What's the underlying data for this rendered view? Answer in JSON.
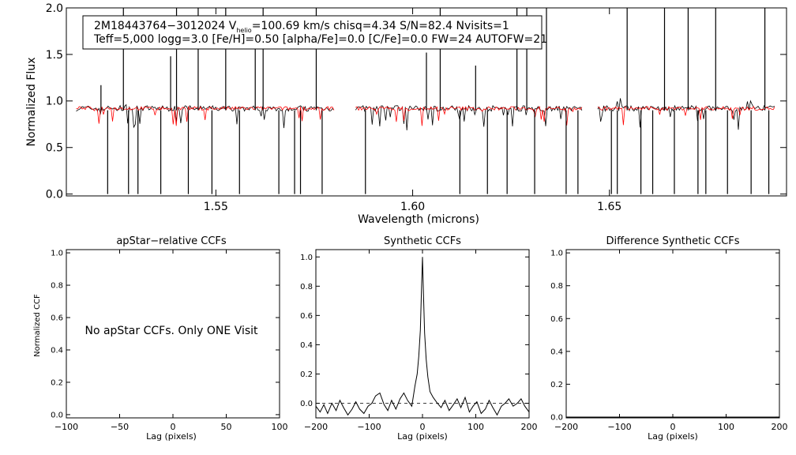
{
  "chart_data": [
    {
      "type": "line",
      "title": "",
      "xlabel": "Wavelength (microns)",
      "ylabel": "Normalized Flux",
      "xlim": [
        1.512,
        1.695
      ],
      "ylim": [
        -0.02,
        2.0
      ],
      "x_ticks": [
        1.55,
        1.6,
        1.65
      ],
      "x_tick_labels": [
        "1.55",
        "1.60",
        "1.65"
      ],
      "y_ticks": [
        0.0,
        0.5,
        1.0,
        1.5,
        2.0
      ],
      "y_tick_labels": [
        "0.0",
        "0.5",
        "1.0",
        "1.5",
        "2.0"
      ],
      "annotation": {
        "line1_prefix": "2M18443764−3012024  V",
        "line1_sub": "helio",
        "line1_rest": "=100.69 km/s  chisq=4.34  S/N=82.4  Nvisits=1",
        "line2": "Teff=5,000 logg=3.0 [Fe/H]=0.50 [alpha/Fe]=0.0 [C/Fe]=0.0 FW=24 AUTOFW=21"
      },
      "chips": [
        [
          1.5145,
          1.58
        ],
        [
          1.5855,
          1.643
        ],
        [
          1.647,
          1.692
        ]
      ],
      "series": [
        {
          "role": "observed",
          "color": "#000000",
          "continuum": 0.92,
          "noise": 0.03
        },
        {
          "role": "model",
          "color": "#ff0000",
          "continuum": 0.92,
          "noise": 0.02
        }
      ],
      "features": [
        {
          "x": 1.5208,
          "y": 1.17
        },
        {
          "x": 1.5225,
          "y": 0.0
        },
        {
          "x": 1.5265,
          "y": 2.0
        },
        {
          "x": 1.5278,
          "y": 0.0
        },
        {
          "x": 1.5302,
          "y": 0.0
        },
        {
          "x": 1.536,
          "y": 0.0
        },
        {
          "x": 1.5385,
          "y": 1.48
        },
        {
          "x": 1.54,
          "y": 2.0
        },
        {
          "x": 1.543,
          "y": 0.0
        },
        {
          "x": 1.5455,
          "y": 2.0
        },
        {
          "x": 1.549,
          "y": 0.0
        },
        {
          "x": 1.5525,
          "y": 2.0
        },
        {
          "x": 1.556,
          "y": 0.0
        },
        {
          "x": 1.56,
          "y": 1.58
        },
        {
          "x": 1.562,
          "y": 2.0
        },
        {
          "x": 1.566,
          "y": 0.0
        },
        {
          "x": 1.57,
          "y": 0.0
        },
        {
          "x": 1.5715,
          "y": 0.0
        },
        {
          "x": 1.5755,
          "y": 2.0
        },
        {
          "x": 1.577,
          "y": 0.0
        },
        {
          "x": 1.588,
          "y": 0.0
        },
        {
          "x": 1.6035,
          "y": 1.52
        },
        {
          "x": 1.607,
          "y": 2.0
        },
        {
          "x": 1.612,
          "y": 0.0
        },
        {
          "x": 1.616,
          "y": 1.38
        },
        {
          "x": 1.619,
          "y": 0.0
        },
        {
          "x": 1.624,
          "y": 0.0
        },
        {
          "x": 1.6265,
          "y": 2.0
        },
        {
          "x": 1.629,
          "y": 2.0
        },
        {
          "x": 1.631,
          "y": 0.0
        },
        {
          "x": 1.634,
          "y": 2.0
        },
        {
          "x": 1.639,
          "y": 0.0
        },
        {
          "x": 1.642,
          "y": 0.0
        },
        {
          "x": 1.6505,
          "y": 0.0
        },
        {
          "x": 1.652,
          "y": 0.0
        },
        {
          "x": 1.6545,
          "y": 2.0
        },
        {
          "x": 1.658,
          "y": 0.0
        },
        {
          "x": 1.661,
          "y": 0.0
        },
        {
          "x": 1.664,
          "y": 2.0
        },
        {
          "x": 1.6665,
          "y": 0.0
        },
        {
          "x": 1.67,
          "y": 2.0
        },
        {
          "x": 1.6725,
          "y": 0.0
        },
        {
          "x": 1.6745,
          "y": 0.0
        },
        {
          "x": 1.677,
          "y": 2.0
        },
        {
          "x": 1.68,
          "y": 0.0
        },
        {
          "x": 1.686,
          "y": 0.0
        },
        {
          "x": 1.6895,
          "y": 2.0
        },
        {
          "x": 1.6905,
          "y": 0.0
        }
      ]
    },
    {
      "type": "line",
      "title": "apStar−relative CCFs",
      "xlabel": "Lag (pixels)",
      "ylabel": "Normalized CCF",
      "xlim": [
        -100,
        100
      ],
      "ylim": [
        -0.02,
        1.02
      ],
      "x_ticks": [
        -100,
        -50,
        0,
        50,
        100
      ],
      "x_tick_labels": [
        "−100",
        "−50",
        "0",
        "50",
        "100"
      ],
      "y_ticks": [
        0.0,
        0.2,
        0.4,
        0.6,
        0.8,
        1.0
      ],
      "y_tick_labels": [
        "0.0",
        "0.2",
        "0.4",
        "0.6",
        "0.8",
        "1.0"
      ],
      "message": "No apStar CCFs.  Only ONE Visit",
      "series": []
    },
    {
      "type": "line",
      "title": "Synthetic CCFs",
      "xlabel": "Lag (pixels)",
      "ylabel": "",
      "xlim": [
        -200,
        200
      ],
      "ylim": [
        -0.1,
        1.05
      ],
      "x_ticks": [
        -200,
        -100,
        0,
        100,
        200
      ],
      "x_tick_labels": [
        "−200",
        "−100",
        "0",
        "100",
        "200"
      ],
      "y_ticks": [
        0.0,
        0.2,
        0.4,
        0.6,
        0.8,
        1.0
      ],
      "y_tick_labels": [
        "0.0",
        "0.2",
        "0.4",
        "0.6",
        "0.8",
        "1.0"
      ],
      "zero_line": "dashed",
      "series": [
        {
          "color": "#000000",
          "x": [
            -200,
            -192,
            -185,
            -178,
            -170,
            -162,
            -155,
            -148,
            -140,
            -132,
            -125,
            -118,
            -110,
            -102,
            -95,
            -88,
            -80,
            -72,
            -65,
            -58,
            -50,
            -42,
            -35,
            -28,
            -20,
            -14,
            -10,
            -7,
            -4,
            -2,
            0,
            2,
            4,
            7,
            10,
            14,
            20,
            28,
            35,
            42,
            50,
            58,
            65,
            72,
            80,
            88,
            95,
            102,
            110,
            118,
            125,
            132,
            140,
            148,
            155,
            162,
            170,
            178,
            185,
            192,
            200
          ],
          "y": [
            -0.02,
            -0.06,
            -0.01,
            -0.07,
            0.0,
            -0.05,
            0.02,
            -0.03,
            -0.08,
            -0.04,
            0.01,
            -0.04,
            -0.07,
            -0.02,
            0.0,
            0.05,
            0.07,
            -0.01,
            -0.05,
            0.02,
            -0.04,
            0.03,
            0.07,
            0.02,
            -0.02,
            0.12,
            0.2,
            0.32,
            0.5,
            0.75,
            1.0,
            0.72,
            0.48,
            0.3,
            0.18,
            0.08,
            0.04,
            0.0,
            -0.03,
            0.02,
            -0.05,
            -0.01,
            0.03,
            -0.03,
            0.04,
            -0.06,
            -0.02,
            0.01,
            -0.07,
            -0.04,
            0.02,
            -0.03,
            -0.08,
            -0.02,
            0.0,
            0.03,
            -0.02,
            0.0,
            0.03,
            -0.02,
            -0.06
          ]
        }
      ]
    },
    {
      "type": "line",
      "title": "Difference Synthetic CCFs",
      "xlabel": "Lag (pixels)",
      "ylabel": "",
      "xlim": [
        -200,
        200
      ],
      "ylim": [
        -0.005,
        1.02
      ],
      "x_ticks": [
        -200,
        -100,
        0,
        100,
        200
      ],
      "x_tick_labels": [
        "−200",
        "−100",
        "0",
        "100",
        "200"
      ],
      "y_ticks": [
        0.0,
        0.2,
        0.4,
        0.6,
        0.8,
        1.0
      ],
      "y_tick_labels": [
        "0.0",
        "0.2",
        "0.4",
        "0.6",
        "0.8",
        "1.0"
      ],
      "series": [
        {
          "color": "#000000",
          "x": [
            -200,
            200
          ],
          "y": [
            0.0,
            0.0
          ]
        }
      ]
    }
  ]
}
